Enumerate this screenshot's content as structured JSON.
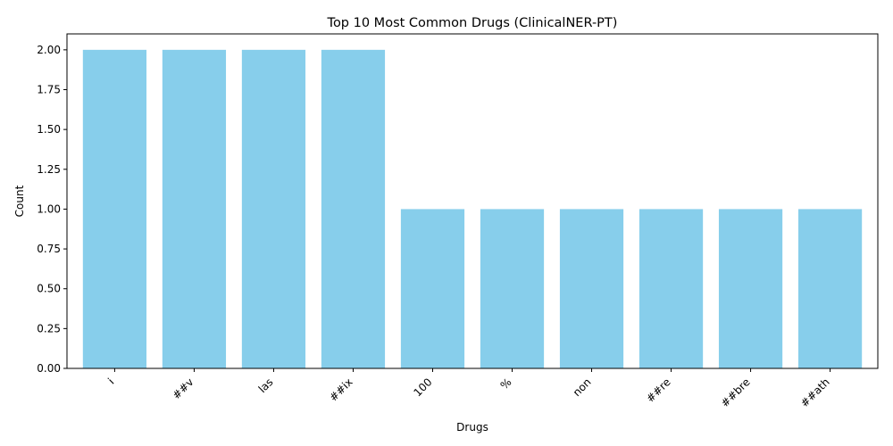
{
  "chart_data": {
    "type": "bar",
    "title": "Top 10 Most Common Drugs (ClinicalNER-PT)",
    "xlabel": "Drugs",
    "ylabel": "Count",
    "categories": [
      "i",
      "##v",
      "las",
      "##ix",
      "100",
      "%",
      "non",
      "##re",
      "##bre",
      "##ath"
    ],
    "values": [
      2,
      2,
      2,
      2,
      1,
      1,
      1,
      1,
      1,
      1
    ],
    "ylim": [
      0,
      2.1
    ],
    "yticks": [
      "0.00",
      "0.25",
      "0.50",
      "0.75",
      "1.00",
      "1.25",
      "1.50",
      "1.75",
      "2.00"
    ],
    "bar_color": "#87CEEB",
    "grid": false,
    "legend": false
  }
}
